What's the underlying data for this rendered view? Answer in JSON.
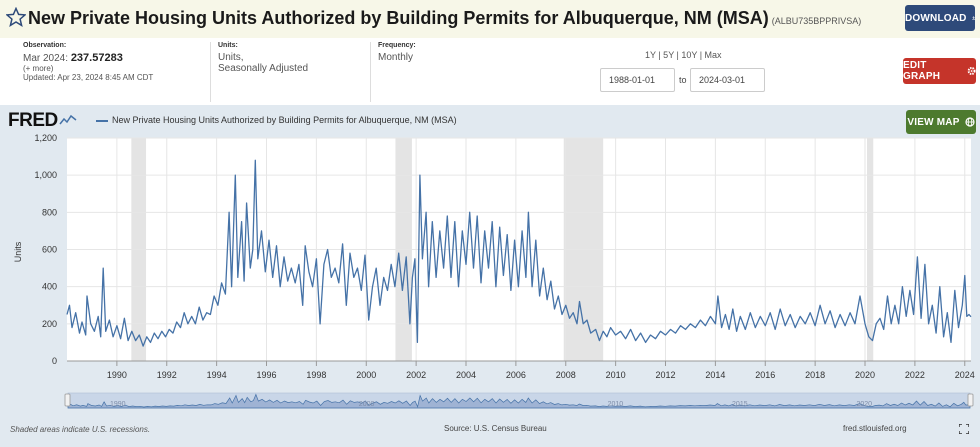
{
  "header": {
    "title": "New Private Housing Units Authorized by Building Permits for Albuquerque, NM (MSA)",
    "series_id": "(ALBU735BPPRIVSA)",
    "download_label": "DOWNLOAD"
  },
  "meta": {
    "observation_label": "Observation:",
    "observation_date": "Mar 2024:",
    "observation_value": "237.57283",
    "more": "(+ more)",
    "updated": "Updated: Apr 23, 2024 8:45 AM CDT",
    "units_label": "Units:",
    "units_line1": "Units,",
    "units_line2": "Seasonally Adjusted",
    "frequency_label": "Frequency:",
    "frequency_value": "Monthly"
  },
  "controls": {
    "range_links": "1Y | 5Y | 10Y | Max",
    "start_date": "1988-01-01",
    "to_label": "to",
    "end_date": "2024-03-01",
    "edit_label": "EDIT GRAPH",
    "map_label": "VIEW MAP"
  },
  "logo": "FRED",
  "footer": {
    "note": "Shaded areas indicate U.S. recessions.",
    "source": "Source: U.S. Census Bureau",
    "url": "fred.stlouisfed.org"
  },
  "chart_data": {
    "type": "line",
    "legend": "New Private Housing Units Authorized by Building Permits for Albuquerque, NM (MSA)",
    "ylabel": "Units",
    "xlim": [
      1988.0,
      2024.25
    ],
    "ylim": [
      0,
      1200
    ],
    "yticks": [
      0,
      200,
      400,
      600,
      800,
      1000,
      1200
    ],
    "ytick_labels": [
      "0",
      "200",
      "400",
      "600",
      "800",
      "1,000",
      "1,200"
    ],
    "xticks": [
      1990,
      1992,
      1994,
      1996,
      1998,
      2000,
      2002,
      2004,
      2006,
      2008,
      2010,
      2012,
      2014,
      2016,
      2018,
      2020,
      2022,
      2024
    ],
    "navigator_ticks": [
      1990,
      2000,
      2010,
      2015,
      2020
    ],
    "recessions": [
      [
        1990.58,
        1991.17
      ],
      [
        2001.17,
        2001.83
      ],
      [
        2007.92,
        2009.5
      ],
      [
        2020.08,
        2020.33
      ]
    ],
    "series": [
      {
        "color": "#4572a7",
        "points": [
          [
            1988.0,
            250
          ],
          [
            1988.1,
            300
          ],
          [
            1988.2,
            180
          ],
          [
            1988.35,
            260
          ],
          [
            1988.5,
            150
          ],
          [
            1988.6,
            210
          ],
          [
            1988.75,
            140
          ],
          [
            1988.8,
            350
          ],
          [
            1988.95,
            200
          ],
          [
            1989.1,
            160
          ],
          [
            1989.25,
            240
          ],
          [
            1989.35,
            130
          ],
          [
            1989.45,
            500
          ],
          [
            1989.55,
            160
          ],
          [
            1989.7,
            220
          ],
          [
            1989.85,
            130
          ],
          [
            1990.0,
            190
          ],
          [
            1990.15,
            120
          ],
          [
            1990.3,
            230
          ],
          [
            1990.45,
            110
          ],
          [
            1990.6,
            160
          ],
          [
            1990.75,
            110
          ],
          [
            1990.9,
            140
          ],
          [
            1991.05,
            80
          ],
          [
            1991.2,
            130
          ],
          [
            1991.35,
            100
          ],
          [
            1991.5,
            150
          ],
          [
            1991.65,
            120
          ],
          [
            1991.8,
            160
          ],
          [
            1991.95,
            130
          ],
          [
            1992.1,
            170
          ],
          [
            1992.25,
            150
          ],
          [
            1992.4,
            210
          ],
          [
            1992.55,
            180
          ],
          [
            1992.7,
            260
          ],
          [
            1992.85,
            200
          ],
          [
            1993.0,
            240
          ],
          [
            1993.15,
            200
          ],
          [
            1993.3,
            290
          ],
          [
            1993.45,
            220
          ],
          [
            1993.6,
            260
          ],
          [
            1993.75,
            250
          ],
          [
            1993.9,
            350
          ],
          [
            1994.05,
            300
          ],
          [
            1994.2,
            420
          ],
          [
            1994.35,
            360
          ],
          [
            1994.5,
            800
          ],
          [
            1994.6,
            400
          ],
          [
            1994.75,
            1000
          ],
          [
            1994.85,
            450
          ],
          [
            1995.0,
            750
          ],
          [
            1995.1,
            430
          ],
          [
            1995.2,
            850
          ],
          [
            1995.35,
            500
          ],
          [
            1995.45,
            600
          ],
          [
            1995.55,
            1080
          ],
          [
            1995.65,
            550
          ],
          [
            1995.8,
            700
          ],
          [
            1995.95,
            480
          ],
          [
            1996.1,
            650
          ],
          [
            1996.25,
            450
          ],
          [
            1996.4,
            620
          ],
          [
            1996.55,
            400
          ],
          [
            1996.7,
            560
          ],
          [
            1996.85,
            430
          ],
          [
            1997.0,
            500
          ],
          [
            1997.15,
            420
          ],
          [
            1997.3,
            520
          ],
          [
            1997.45,
            300
          ],
          [
            1997.55,
            620
          ],
          [
            1997.7,
            480
          ],
          [
            1997.85,
            400
          ],
          [
            1998.0,
            550
          ],
          [
            1998.15,
            200
          ],
          [
            1998.3,
            520
          ],
          [
            1998.45,
            600
          ],
          [
            1998.6,
            450
          ],
          [
            1998.75,
            500
          ],
          [
            1998.9,
            420
          ],
          [
            1999.05,
            630
          ],
          [
            1999.2,
            300
          ],
          [
            1999.35,
            580
          ],
          [
            1999.5,
            450
          ],
          [
            1999.65,
            500
          ],
          [
            1999.8,
            380
          ],
          [
            1999.95,
            570
          ],
          [
            2000.1,
            220
          ],
          [
            2000.25,
            400
          ],
          [
            2000.4,
            500
          ],
          [
            2000.55,
            300
          ],
          [
            2000.7,
            450
          ],
          [
            2000.85,
            380
          ],
          [
            2001.0,
            520
          ],
          [
            2001.15,
            400
          ],
          [
            2001.3,
            580
          ],
          [
            2001.45,
            380
          ],
          [
            2001.6,
            560
          ],
          [
            2001.75,
            200
          ],
          [
            2001.85,
            450
          ],
          [
            2001.95,
            550
          ],
          [
            2002.05,
            100
          ],
          [
            2002.15,
            1000
          ],
          [
            2002.25,
            550
          ],
          [
            2002.4,
            800
          ],
          [
            2002.5,
            400
          ],
          [
            2002.65,
            750
          ],
          [
            2002.8,
            450
          ],
          [
            2002.95,
            700
          ],
          [
            2003.1,
            500
          ],
          [
            2003.25,
            780
          ],
          [
            2003.4,
            450
          ],
          [
            2003.55,
            750
          ],
          [
            2003.7,
            400
          ],
          [
            2003.85,
            700
          ],
          [
            2004.0,
            520
          ],
          [
            2004.15,
            800
          ],
          [
            2004.3,
            500
          ],
          [
            2004.45,
            780
          ],
          [
            2004.6,
            420
          ],
          [
            2004.75,
            700
          ],
          [
            2004.9,
            500
          ],
          [
            2005.05,
            750
          ],
          [
            2005.2,
            400
          ],
          [
            2005.35,
            720
          ],
          [
            2005.5,
            460
          ],
          [
            2005.65,
            680
          ],
          [
            2005.8,
            380
          ],
          [
            2005.95,
            650
          ],
          [
            2006.1,
            400
          ],
          [
            2006.25,
            700
          ],
          [
            2006.4,
            450
          ],
          [
            2006.5,
            800
          ],
          [
            2006.65,
            400
          ],
          [
            2006.8,
            650
          ],
          [
            2006.95,
            350
          ],
          [
            2007.1,
            500
          ],
          [
            2007.25,
            330
          ],
          [
            2007.4,
            430
          ],
          [
            2007.55,
            280
          ],
          [
            2007.7,
            350
          ],
          [
            2007.85,
            250
          ],
          [
            2008.0,
            300
          ],
          [
            2008.15,
            230
          ],
          [
            2008.3,
            260
          ],
          [
            2008.45,
            200
          ],
          [
            2008.55,
            320
          ],
          [
            2008.7,
            200
          ],
          [
            2008.85,
            220
          ],
          [
            2009.0,
            150
          ],
          [
            2009.2,
            170
          ],
          [
            2009.35,
            110
          ],
          [
            2009.5,
            160
          ],
          [
            2009.65,
            130
          ],
          [
            2009.8,
            180
          ],
          [
            2010.0,
            140
          ],
          [
            2010.2,
            160
          ],
          [
            2010.4,
            120
          ],
          [
            2010.6,
            170
          ],
          [
            2010.8,
            110
          ],
          [
            2011.0,
            150
          ],
          [
            2011.2,
            100
          ],
          [
            2011.4,
            140
          ],
          [
            2011.6,
            120
          ],
          [
            2011.8,
            160
          ],
          [
            2012.0,
            140
          ],
          [
            2012.2,
            170
          ],
          [
            2012.4,
            150
          ],
          [
            2012.6,
            190
          ],
          [
            2012.8,
            170
          ],
          [
            2013.0,
            200
          ],
          [
            2013.2,
            180
          ],
          [
            2013.4,
            220
          ],
          [
            2013.6,
            190
          ],
          [
            2013.8,
            240
          ],
          [
            2014.0,
            200
          ],
          [
            2014.1,
            350
          ],
          [
            2014.25,
            180
          ],
          [
            2014.4,
            250
          ],
          [
            2014.55,
            170
          ],
          [
            2014.7,
            280
          ],
          [
            2014.85,
            160
          ],
          [
            2015.0,
            240
          ],
          [
            2015.2,
            170
          ],
          [
            2015.4,
            260
          ],
          [
            2015.6,
            180
          ],
          [
            2015.8,
            240
          ],
          [
            2016.0,
            190
          ],
          [
            2016.2,
            260
          ],
          [
            2016.4,
            170
          ],
          [
            2016.6,
            280
          ],
          [
            2016.8,
            190
          ],
          [
            2017.0,
            250
          ],
          [
            2017.2,
            180
          ],
          [
            2017.4,
            240
          ],
          [
            2017.6,
            200
          ],
          [
            2017.8,
            260
          ],
          [
            2018.0,
            190
          ],
          [
            2018.2,
            300
          ],
          [
            2018.4,
            200
          ],
          [
            2018.6,
            270
          ],
          [
            2018.8,
            180
          ],
          [
            2019.0,
            250
          ],
          [
            2019.2,
            190
          ],
          [
            2019.4,
            260
          ],
          [
            2019.6,
            200
          ],
          [
            2019.8,
            350
          ],
          [
            2020.0,
            200
          ],
          [
            2020.15,
            130
          ],
          [
            2020.3,
            110
          ],
          [
            2020.45,
            200
          ],
          [
            2020.6,
            230
          ],
          [
            2020.75,
            170
          ],
          [
            2020.9,
            350
          ],
          [
            2021.05,
            200
          ],
          [
            2021.2,
            300
          ],
          [
            2021.35,
            200
          ],
          [
            2021.5,
            400
          ],
          [
            2021.65,
            240
          ],
          [
            2021.8,
            380
          ],
          [
            2021.95,
            250
          ],
          [
            2022.1,
            560
          ],
          [
            2022.25,
            230
          ],
          [
            2022.4,
            520
          ],
          [
            2022.55,
            200
          ],
          [
            2022.7,
            300
          ],
          [
            2022.85,
            150
          ],
          [
            2023.0,
            400
          ],
          [
            2023.15,
            130
          ],
          [
            2023.3,
            260
          ],
          [
            2023.45,
            100
          ],
          [
            2023.6,
            380
          ],
          [
            2023.75,
            180
          ],
          [
            2023.9,
            300
          ],
          [
            2024.0,
            460
          ],
          [
            2024.08,
            240
          ],
          [
            2024.17,
            250
          ],
          [
            2024.25,
            238
          ]
        ]
      }
    ]
  }
}
